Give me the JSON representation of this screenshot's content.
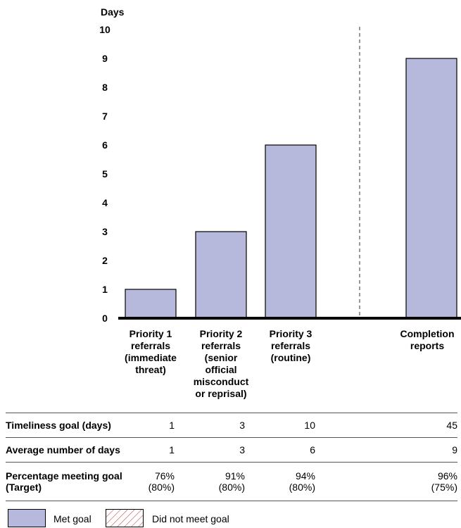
{
  "chart_data": {
    "type": "bar",
    "ylabel": "Days",
    "ylim": [
      0,
      10
    ],
    "yticks": [
      "0",
      "1",
      "2",
      "3",
      "4",
      "5",
      "6",
      "7",
      "8",
      "9",
      "10"
    ],
    "categories": [
      "Priority 1 referrals (immediate threat)",
      "Priority 2 referrals (senior official misconduct or reprisal)",
      "Priority 3 referrals (routine)",
      "Completion reports"
    ],
    "category_lines": [
      [
        "Priority 1",
        "referrals",
        "(immediate",
        "threat)"
      ],
      [
        "Priority 2",
        "referrals",
        "(senior",
        "official",
        "misconduct",
        "or reprisal)"
      ],
      [
        "Priority 3",
        "referrals",
        "(routine)"
      ],
      [
        "Completion",
        "reports"
      ]
    ],
    "values": [
      1,
      3,
      6,
      9
    ],
    "status": [
      "met",
      "met",
      "met",
      "met"
    ],
    "colors": {
      "met": "#b6b9dc",
      "not_met_hatch": "#c0504d"
    }
  },
  "table": {
    "rows": [
      {
        "label": "Timeliness goal (days)",
        "cells": [
          "1",
          "3",
          "10",
          "45"
        ]
      },
      {
        "label": "Average number of days",
        "cells": [
          "1",
          "3",
          "6",
          "9"
        ]
      },
      {
        "label_lines": [
          "Percentage meeting goal",
          "(Target)"
        ],
        "cells": [
          [
            "76%",
            "(80%)"
          ],
          [
            "91%",
            "(80%)"
          ],
          [
            "94%",
            "(80%)"
          ],
          [
            "96%",
            "(75%)"
          ]
        ]
      }
    ]
  },
  "legend": {
    "met": "Met goal",
    "not_met": "Did not meet goal"
  }
}
